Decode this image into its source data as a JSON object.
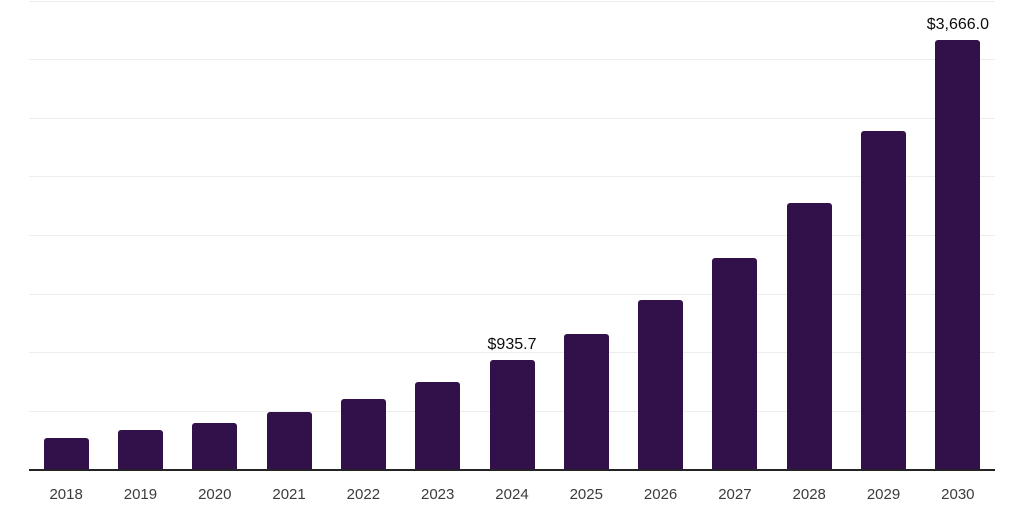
{
  "chart_data": {
    "type": "bar",
    "title": "",
    "xlabel": "",
    "ylabel": "",
    "categories": [
      "2018",
      "2019",
      "2020",
      "2021",
      "2022",
      "2023",
      "2024",
      "2025",
      "2026",
      "2027",
      "2028",
      "2029",
      "2030"
    ],
    "values": [
      272,
      338,
      398,
      497,
      602,
      748,
      935.7,
      1163,
      1447,
      1812,
      2281,
      2895,
      3666
    ],
    "value_labels": {
      "2024": "$935.7",
      "2030": "$3,666.0"
    },
    "ylim": [
      0,
      4000
    ],
    "grid_step": 500,
    "grid": "horizontal-light-gray",
    "y_tick_labels_visible": false,
    "legend_position": "none",
    "bar_corner": "rounded-top"
  },
  "colors": {
    "bar": "#32104A",
    "grid": "#ededed",
    "axis": "#242424",
    "tick_label": "#3c3c3c",
    "value_label": "#0c0c0c",
    "background": "#ffffff"
  }
}
